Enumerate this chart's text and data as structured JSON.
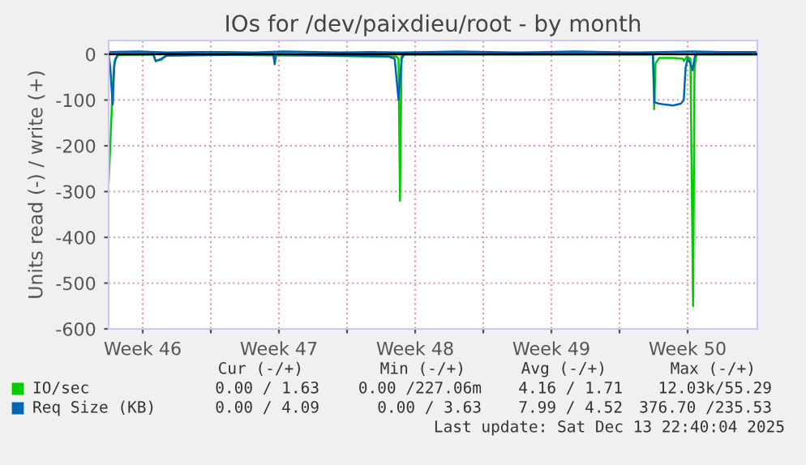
{
  "chart_data": {
    "type": "line",
    "title": "IOs for /dev/paixdieu/root - by month",
    "ylabel": "Units read (-) / write (+)",
    "xlim": [
      "2025-11-11T18:00",
      "2025-12-15T02:00"
    ],
    "xticks": [
      {
        "value": "2025-11-13T12:00",
        "label": "Week 46"
      },
      {
        "value": "2025-11-17",
        "label": null
      },
      {
        "value": "2025-11-20T12:00",
        "label": "Week 47"
      },
      {
        "value": "2025-11-24",
        "label": null
      },
      {
        "value": "2025-11-27T12:00",
        "label": "Week 48"
      },
      {
        "value": "2025-12-01",
        "label": null
      },
      {
        "value": "2025-12-04T12:00",
        "label": "Week 49"
      },
      {
        "value": "2025-12-08",
        "label": null
      },
      {
        "value": "2025-12-11T12:00",
        "label": "Week 50"
      }
    ],
    "ylim": [
      -600,
      30
    ],
    "yticks": [
      0,
      -100,
      -200,
      -300,
      -400,
      -500,
      -600
    ],
    "grid": true,
    "legend": "bottom",
    "ref_lines": [
      {
        "axis": "y",
        "value": 0,
        "color": "#000000"
      }
    ],
    "series": [
      {
        "name": "IO/sec",
        "color": "#00cc00",
        "x": [
          "2025-11-11T18:00",
          "2025-11-11T20:00",
          "2025-11-11T22:00",
          "2025-11-12T00:00",
          "2025-11-12T02:00",
          "2025-11-12T06:00",
          "2025-11-14T01:00",
          "2025-11-14T04:00",
          "2025-11-14T11:00",
          "2025-11-14T18:00",
          "2025-11-26T13:00",
          "2025-11-26T15:30",
          "2025-11-26T17:15",
          "2025-11-26T19:15",
          "2025-11-26T22:45",
          "2025-12-09T17:15",
          "2025-12-09T18:45",
          "2025-12-09T20:30",
          "2025-12-10T01:00",
          "2025-12-10T18:00",
          "2025-12-11T06:00",
          "2025-12-11T07:30",
          "2025-12-11T11:00",
          "2025-12-11T15:30",
          "2025-12-11T18:45",
          "2025-12-11T20:30",
          "2025-12-11T23:00",
          "2025-12-15T02:00"
        ],
        "values": [
          -280,
          -200,
          -110,
          -40,
          -10,
          -2,
          0,
          -15,
          -12,
          0,
          -5,
          -10,
          -320,
          -5,
          0,
          0,
          -120,
          -20,
          -8,
          -8,
          -10,
          -15,
          -5,
          -10,
          -550,
          -30,
          0,
          0
        ]
      },
      {
        "name": "Req Size (KB)",
        "color": "#0066b3",
        "x": [
          "2025-11-11T18:00",
          "2025-11-11T20:00",
          "2025-11-11T23:00",
          "2025-11-12T01:00",
          "2025-11-12T05:00",
          "2025-11-14T01:00",
          "2025-11-14T04:00",
          "2025-11-14T11:00",
          "2025-11-14T18:00",
          "2025-11-20T05:00",
          "2025-11-20T06:45",
          "2025-11-20T08:30",
          "2025-11-26T03:30",
          "2025-11-26T10:45",
          "2025-11-26T15:30",
          "2025-11-26T19:15",
          "2025-11-26T22:45",
          "2025-12-09T17:15",
          "2025-12-09T19:15",
          "2025-12-10T01:00",
          "2025-12-10T08:30",
          "2025-12-10T18:00",
          "2025-12-11T03:30",
          "2025-12-11T07:15",
          "2025-12-11T09:30",
          "2025-12-11T12:00",
          "2025-12-11T15:30",
          "2025-12-11T18:00",
          "2025-12-11T21:30",
          "2025-12-15T02:00"
        ],
        "values": [
          0,
          -30,
          -110,
          -20,
          0,
          0,
          -15,
          -10,
          -3,
          0,
          -22,
          0,
          -5,
          -10,
          -100,
          -10,
          0,
          0,
          -105,
          -108,
          -110,
          -112,
          -108,
          -100,
          -30,
          -10,
          -20,
          -35,
          0,
          0
        ]
      },
      {
        "color": "#0066b3",
        "x": [
          "2025-11-11T18:00",
          "2025-11-13T06:00",
          "2025-11-14T18:00",
          "2025-11-16T06:00",
          "2025-11-17T18:00",
          "2025-11-19T06:00",
          "2025-11-20T18:00",
          "2025-11-22T06:00",
          "2025-11-23T18:00",
          "2025-11-25T06:00",
          "2025-11-26T18:00",
          "2025-11-28T06:00",
          "2025-11-29T18:00",
          "2025-12-01T06:00",
          "2025-12-02T18:00",
          "2025-12-04T06:00",
          "2025-12-05T18:00",
          "2025-12-07T06:00",
          "2025-12-08T18:00",
          "2025-12-10T06:00",
          "2025-12-11T18:00",
          "2025-12-13T06:00",
          "2025-12-15T02:00"
        ],
        "values": [
          5,
          6,
          4,
          5,
          5,
          4,
          6,
          5,
          4,
          5,
          4,
          5,
          6,
          5,
          4,
          5,
          6,
          5,
          4,
          5,
          6,
          5,
          5
        ]
      }
    ],
    "annotations": [
      "Cur (-/+)",
      "Min (-/+)",
      "Avg (-/+)",
      "Max (-/+)",
      "0.00 / 1.63",
      "0.00 /227.06m",
      "4.16 / 1.71",
      "12.03k/55.29",
      "0.00 / 4.09",
      "0.00 / 3.63",
      "7.99 / 4.52",
      "376.70 /235.53",
      "Last update: Sat Dec 13 22:40:04 2025"
    ]
  }
}
